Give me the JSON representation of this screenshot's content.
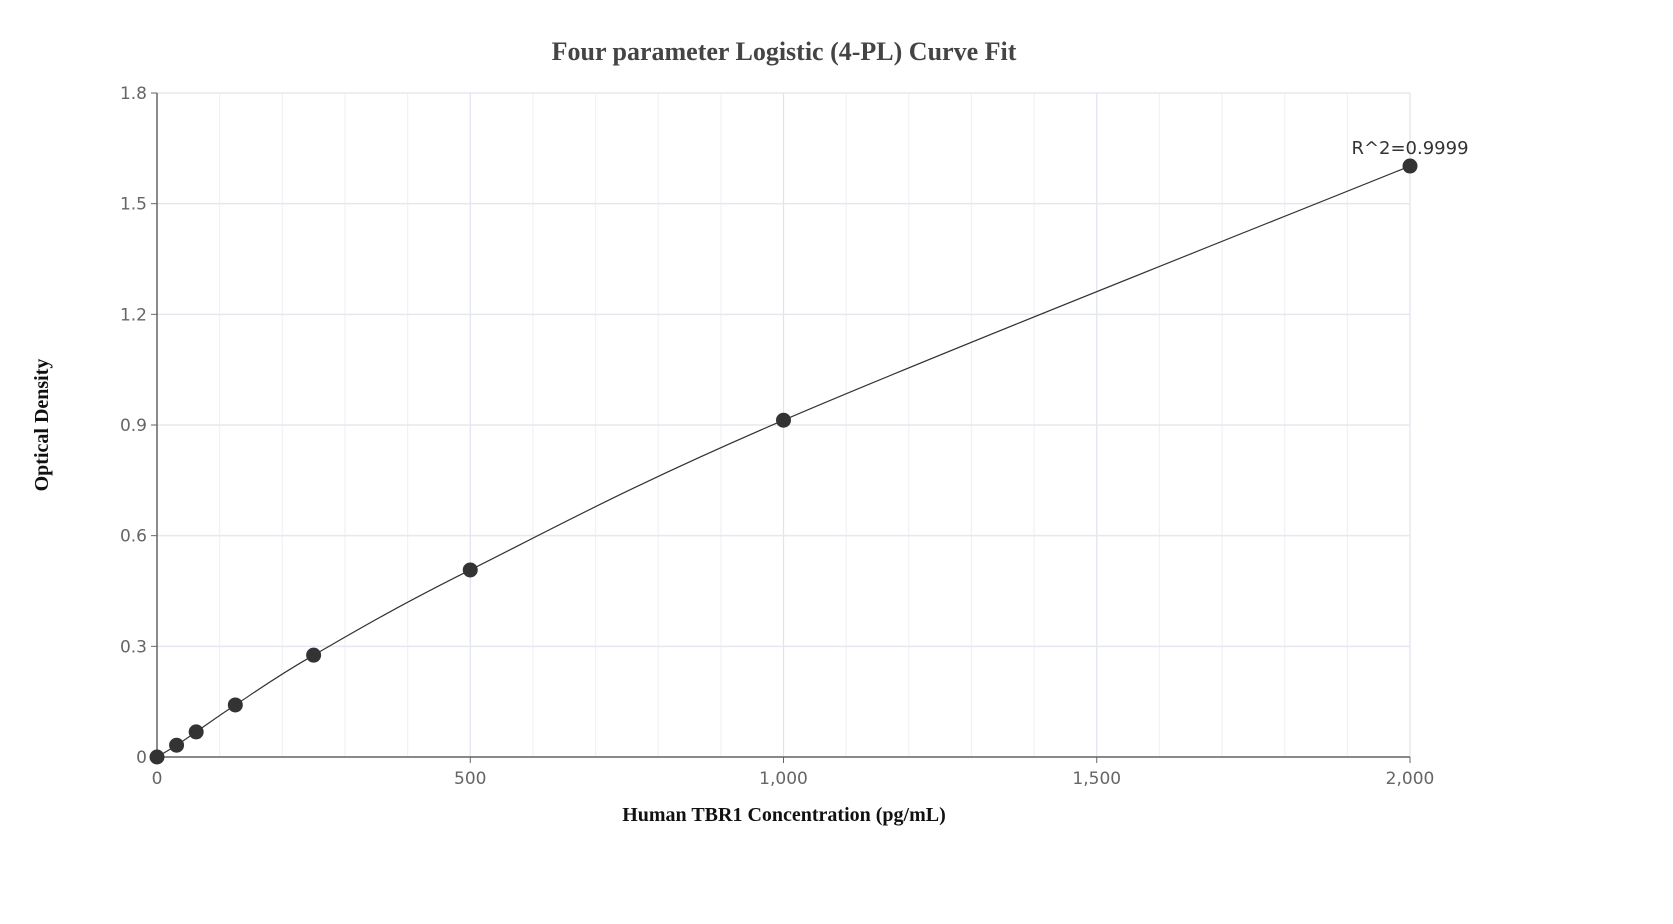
{
  "chart_data": {
    "type": "scatter",
    "title": "Four parameter Logistic (4-PL) Curve Fit",
    "xlabel": "Human TBR1 Concentration (pg/mL)",
    "ylabel": "Optical Density",
    "xlim": [
      0,
      2000
    ],
    "ylim": [
      0,
      1.8
    ],
    "xticks": [
      0,
      500,
      1000,
      1500,
      2000
    ],
    "xtick_labels": [
      "0",
      "500",
      "1,000",
      "1,500",
      "2,000"
    ],
    "yticks": [
      0,
      0.3,
      0.6,
      0.9,
      1.2,
      1.5,
      1.8
    ],
    "ytick_labels": [
      "0",
      "0.3",
      "0.6",
      "0.9",
      "1.2",
      "1.5",
      "1.8"
    ],
    "x_minor_step": 100,
    "grid": true,
    "points": {
      "x": [
        0,
        31.25,
        62.5,
        125,
        250,
        500,
        1000,
        2000
      ],
      "y": [
        0.0,
        0.032,
        0.068,
        0.141,
        0.276,
        0.507,
        0.913,
        1.602
      ]
    },
    "fit_curve": "4-PL",
    "annotation": "R^2=0.9999",
    "colors": {
      "points": "#333333",
      "curve": "#333333",
      "grid": "#e6e8f0",
      "axis": "#666666"
    }
  }
}
